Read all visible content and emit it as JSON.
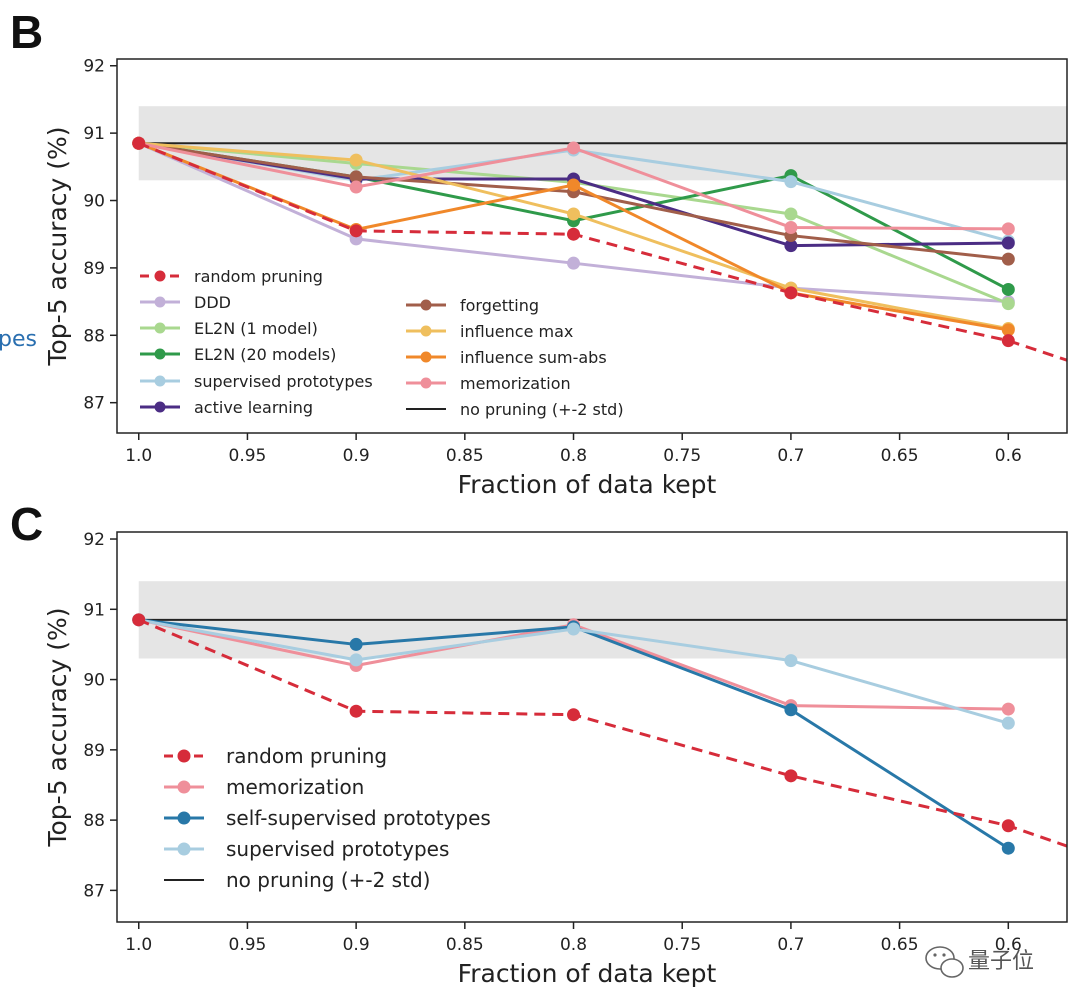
{
  "side_fragment": {
    "text": "pes",
    "color": "#2a6fb0"
  },
  "watermark": {
    "text": "量子位"
  },
  "chart_data": [
    {
      "panel": "B",
      "type": "line",
      "xlabel": "Fraction of data kept",
      "ylabel": "Top-5 accuracy (%)",
      "x": [
        1.0,
        0.9,
        0.8,
        0.7,
        0.6
      ],
      "xticks": [
        "1.0",
        "0.95",
        "0.9",
        "0.85",
        "0.8",
        "0.75",
        "0.7",
        "0.65",
        "0.6"
      ],
      "xtick_values": [
        1.0,
        0.95,
        0.9,
        0.85,
        0.8,
        0.75,
        0.7,
        0.65,
        0.6
      ],
      "xlim": [
        1.01,
        0.573
      ],
      "ylim": [
        86.55,
        92.1
      ],
      "yticks": [
        "92",
        "91",
        "90",
        "89",
        "88",
        "87"
      ],
      "ytick_values": [
        92,
        91,
        90,
        89,
        88,
        87
      ],
      "band": {
        "low": 90.3,
        "high": 91.4
      },
      "baseline": 90.85,
      "random_extension": {
        "x": 0.573,
        "y": 87.63
      },
      "legend_location": "lower-left, two columns",
      "series": [
        {
          "name": "random pruning",
          "color": "#d62c3a",
          "dashed": true,
          "values": [
            90.85,
            89.55,
            89.5,
            88.63,
            87.92
          ]
        },
        {
          "name": "DDD",
          "color": "#c2b0d8",
          "values": [
            90.85,
            89.43,
            89.07,
            88.7,
            88.5
          ]
        },
        {
          "name": "EL2N (1 model)",
          "color": "#a9d88f",
          "values": [
            90.85,
            90.55,
            90.27,
            89.8,
            88.47
          ]
        },
        {
          "name": "EL2N (20 models)",
          "color": "#2f9a4a",
          "values": [
            90.85,
            90.35,
            89.7,
            90.37,
            88.68
          ]
        },
        {
          "name": "supervised prototypes",
          "color": "#a8cde0",
          "values": [
            90.85,
            90.3,
            90.75,
            90.28,
            89.4
          ]
        },
        {
          "name": "active learning",
          "color": "#4b2d84",
          "values": [
            90.85,
            90.32,
            90.32,
            89.33,
            89.37
          ]
        },
        {
          "name": "forgetting",
          "color": "#a15e4a",
          "values": [
            90.85,
            90.35,
            90.13,
            89.48,
            89.13
          ]
        },
        {
          "name": "influence max",
          "color": "#efbf5e",
          "values": [
            90.85,
            90.6,
            89.8,
            88.7,
            88.1
          ]
        },
        {
          "name": "influence sum-abs",
          "color": "#f0882a",
          "values": [
            90.85,
            89.57,
            90.23,
            88.63,
            88.08
          ]
        },
        {
          "name": "memorization",
          "color": "#ef8f9a",
          "values": [
            90.85,
            90.2,
            90.78,
            89.6,
            89.58
          ]
        },
        {
          "name": "no pruning (+-2 std)",
          "color": "#222222",
          "is_baseline": true
        }
      ]
    },
    {
      "panel": "C",
      "type": "line",
      "xlabel": "Fraction of data kept",
      "ylabel": "Top-5 accuracy (%)",
      "x": [
        1.0,
        0.9,
        0.8,
        0.7,
        0.6
      ],
      "xticks": [
        "1.0",
        "0.95",
        "0.9",
        "0.85",
        "0.8",
        "0.75",
        "0.7",
        "0.65",
        "0.6"
      ],
      "xtick_values": [
        1.0,
        0.95,
        0.9,
        0.85,
        0.8,
        0.75,
        0.7,
        0.65,
        0.6
      ],
      "xlim": [
        1.01,
        0.573
      ],
      "ylim": [
        86.55,
        92.1
      ],
      "yticks": [
        "92",
        "91",
        "90",
        "89",
        "88",
        "87"
      ],
      "ytick_values": [
        92,
        91,
        90,
        89,
        88,
        87
      ],
      "band": {
        "low": 90.3,
        "high": 91.4
      },
      "baseline": 90.85,
      "random_extension": {
        "x": 0.573,
        "y": 87.63
      },
      "legend_location": "lower-left",
      "series": [
        {
          "name": "random pruning",
          "color": "#d62c3a",
          "dashed": true,
          "values": [
            90.85,
            89.55,
            89.5,
            88.63,
            87.92
          ]
        },
        {
          "name": "memorization",
          "color": "#ef8f9a",
          "values": [
            90.85,
            90.2,
            90.78,
            89.63,
            89.58
          ]
        },
        {
          "name": "self-supervised prototypes",
          "color": "#2878a8",
          "values": [
            90.85,
            90.5,
            90.75,
            89.57,
            87.6
          ]
        },
        {
          "name": "supervised prototypes",
          "color": "#a8cde0",
          "values": [
            90.85,
            90.28,
            90.72,
            90.27,
            89.38
          ]
        },
        {
          "name": "no pruning (+-2 std)",
          "color": "#222222",
          "is_baseline": true
        }
      ]
    }
  ]
}
